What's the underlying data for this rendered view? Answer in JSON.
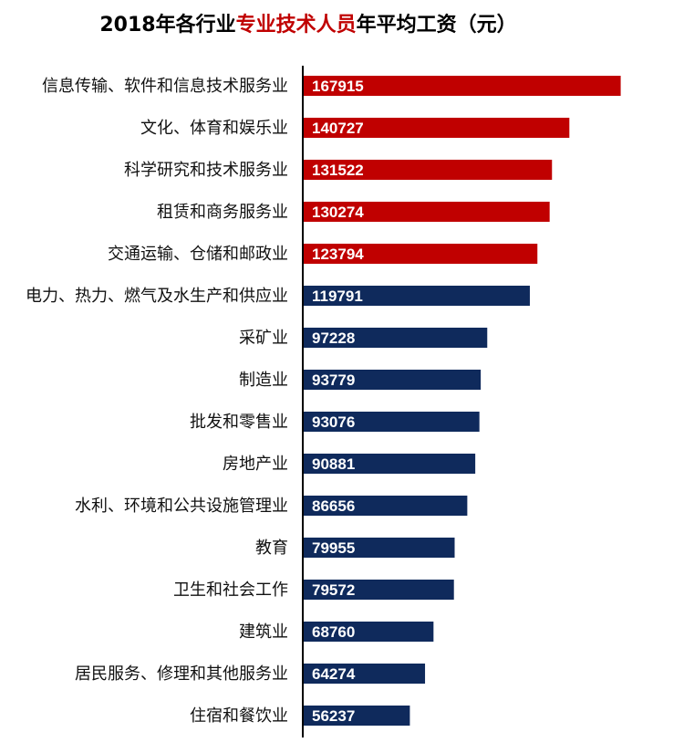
{
  "chart_data": {
    "type": "bar",
    "orientation": "horizontal",
    "title": {
      "before": "2018年各行业",
      "highlight": "专业技术人员",
      "after": "年平均工资（元）"
    },
    "categories": [
      "信息传输、软件和信息技术服务业",
      "文化、体育和娱乐业",
      "科学研究和技术服务业",
      "租赁和商务服务业",
      "交通运输、仓储和邮政业",
      "电力、热力、燃气及水生产和供应业",
      "采矿业",
      "制造业",
      "批发和零售业",
      "房地产业",
      "水利、环境和公共设施管理业",
      "教育",
      "卫生和社会工作",
      "建筑业",
      "居民服务、修理和其他服务业",
      "住宿和餐饮业"
    ],
    "values": [
      167915,
      140727,
      131522,
      130274,
      123794,
      119791,
      97228,
      93779,
      93076,
      90881,
      86656,
      79955,
      79572,
      68760,
      64274,
      56237
    ],
    "highlighted_count": 5,
    "data_labels": true,
    "xlim": [
      0,
      200000
    ],
    "grid": false,
    "legend": "none",
    "colors": {
      "highlight": "#c00000",
      "normal": "#0f2a5c",
      "title_highlight": "#c00000",
      "title_text": "#000000",
      "axis": "#000000",
      "label_text": "#111111",
      "value_text": "#ffffff"
    }
  }
}
